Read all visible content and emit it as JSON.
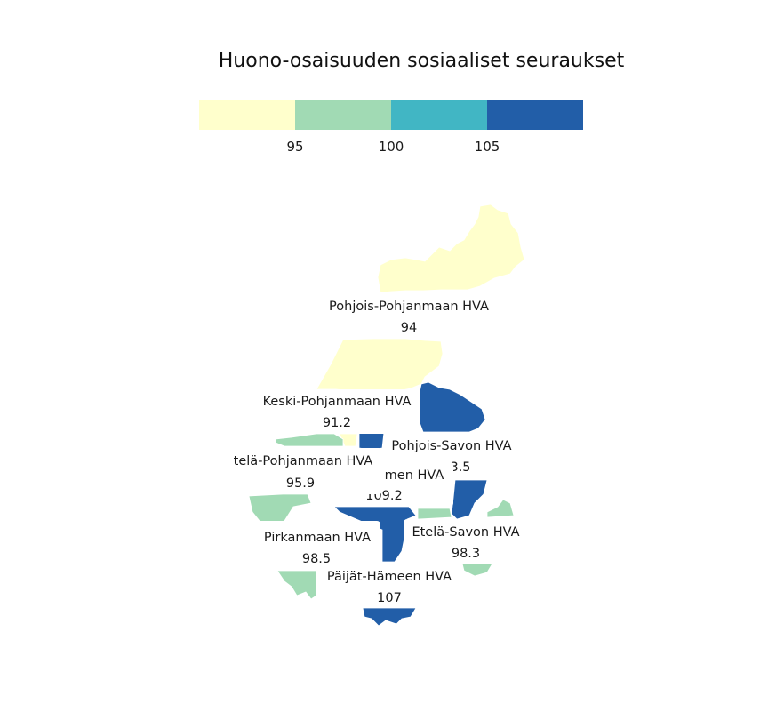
{
  "title": "Huono-osaisuuden sosiaaliset seuraukset",
  "legend": {
    "ticks": [
      "95",
      "100",
      "105"
    ],
    "colors": [
      "#ffffcc",
      "#a1dab4",
      "#41b6c4",
      "#225ea8"
    ]
  },
  "regions": [
    {
      "id": "pohjois-pohjanmaa",
      "name": "Pohjois-Pohjanmaan HVA",
      "value": "94",
      "color": "#ffffcc"
    },
    {
      "id": "keski-pohjanmaa",
      "name": "Keski-Pohjanmaan HVA",
      "value": "91.2",
      "color": "#ffffcc"
    },
    {
      "id": "pohjois-savo",
      "name": "Pohjois-Savon HVA",
      "value": "113.5",
      "shown_name": "Pohjois-Savon HVA",
      "shown_value": "3.5",
      "color": "#225ea8"
    },
    {
      "id": "etela-pohjanmaa",
      "name": "Etelä-Pohjanmaan HVA",
      "shown_name": "telä-Pohjanmaan HVA",
      "value": "95.9",
      "color": "#a1dab4"
    },
    {
      "id": "keski-suomi",
      "name": "Keski-Suomen HVA",
      "shown_name": "men HVA",
      "shown_value": "109.2",
      "value": "109.2",
      "color": "#225ea8"
    },
    {
      "id": "pirkanmaa",
      "name": "Pirkanmaan HVA",
      "value": "98.5",
      "color": "#a1dab4"
    },
    {
      "id": "etela-savo",
      "name": "Etelä-Savon HVA",
      "value": "98.3",
      "color": "#a1dab4"
    },
    {
      "id": "paijat-hame",
      "name": "Päijät-Hämeen HVA",
      "value": "107",
      "color": "#225ea8"
    }
  ]
}
